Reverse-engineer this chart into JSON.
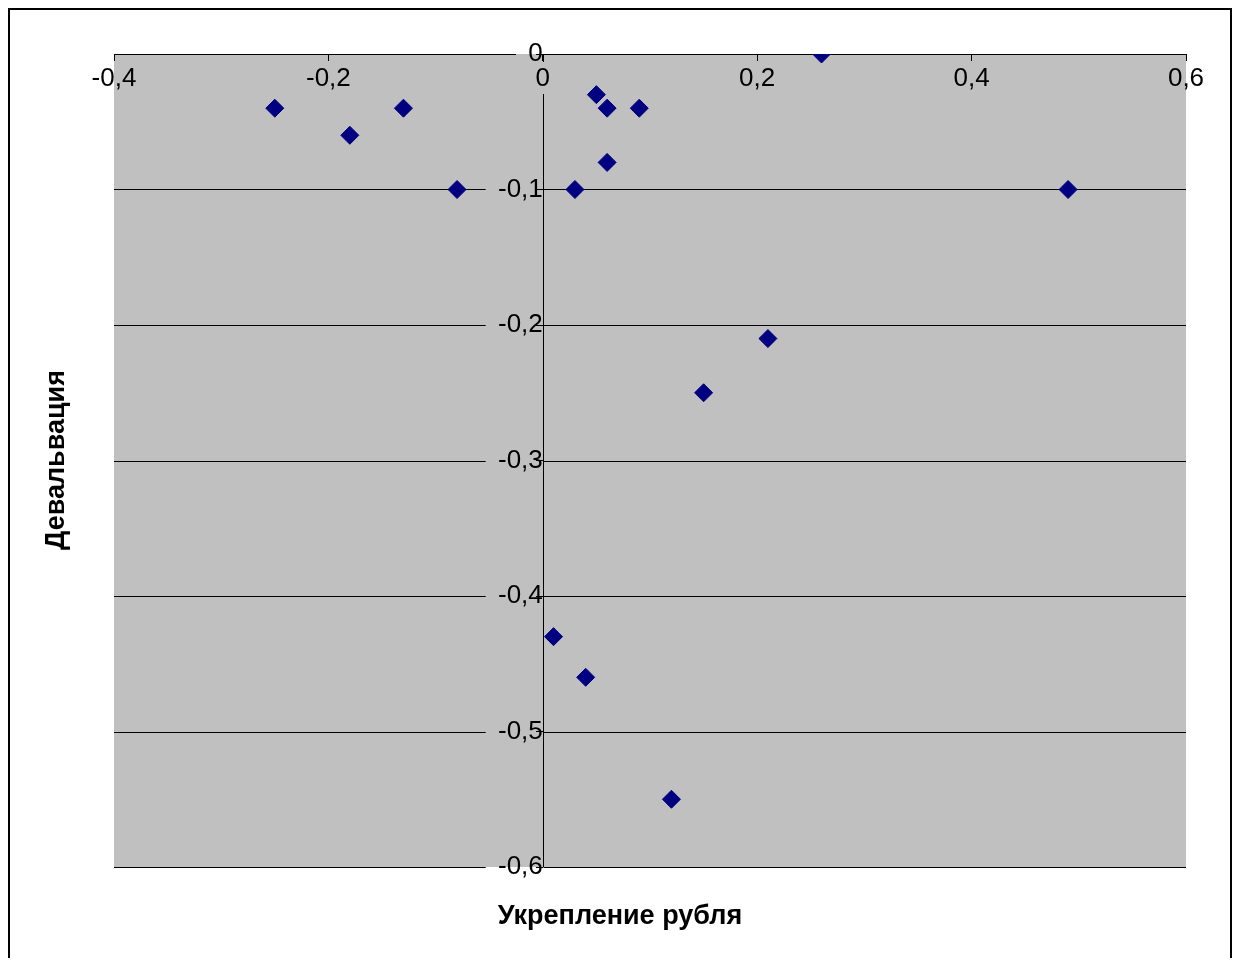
{
  "chart_data": {
    "type": "scatter",
    "xlabel": "Укрепление рубля",
    "ylabel": "Девальвация",
    "x": [
      -0.25,
      -0.18,
      -0.13,
      -0.08,
      0.03,
      0.05,
      0.06,
      0.06,
      0.09,
      0.26,
      0.49,
      0.21,
      0.15,
      0.01,
      0.04,
      0.12
    ],
    "series": [
      {
        "color": "#000080",
        "values": [
          -0.04,
          -0.06,
          -0.04,
          -0.1,
          -0.1,
          -0.03,
          -0.04,
          -0.08,
          -0.04,
          0,
          -0.1,
          -0.21,
          -0.25,
          -0.43,
          -0.46,
          -0.55
        ]
      }
    ],
    "xlim": [
      -0.4,
      0.6
    ],
    "xticks": [
      {
        "value": -0.4,
        "label": "-0,4"
      },
      {
        "value": -0.2,
        "label": "-0,2"
      },
      {
        "value": 0,
        "label": "0"
      },
      {
        "value": 0.2,
        "label": "0,2"
      },
      {
        "value": 0.4,
        "label": "0,4"
      },
      {
        "value": 0.6,
        "label": "0,6"
      }
    ],
    "ylim": [
      -0.6,
      0
    ],
    "yticks": [
      {
        "value": -0.6,
        "label": "-0,6"
      },
      {
        "value": -0.5,
        "label": "-0,5"
      },
      {
        "value": -0.4,
        "label": "-0,4"
      },
      {
        "value": -0.3,
        "label": "-0,3"
      },
      {
        "value": -0.2,
        "label": "-0,2"
      },
      {
        "value": -0.1,
        "label": "-0,1"
      },
      {
        "value": 0,
        "label": "0"
      }
    ],
    "grid": "y",
    "legend": false,
    "marker": "diamond"
  }
}
